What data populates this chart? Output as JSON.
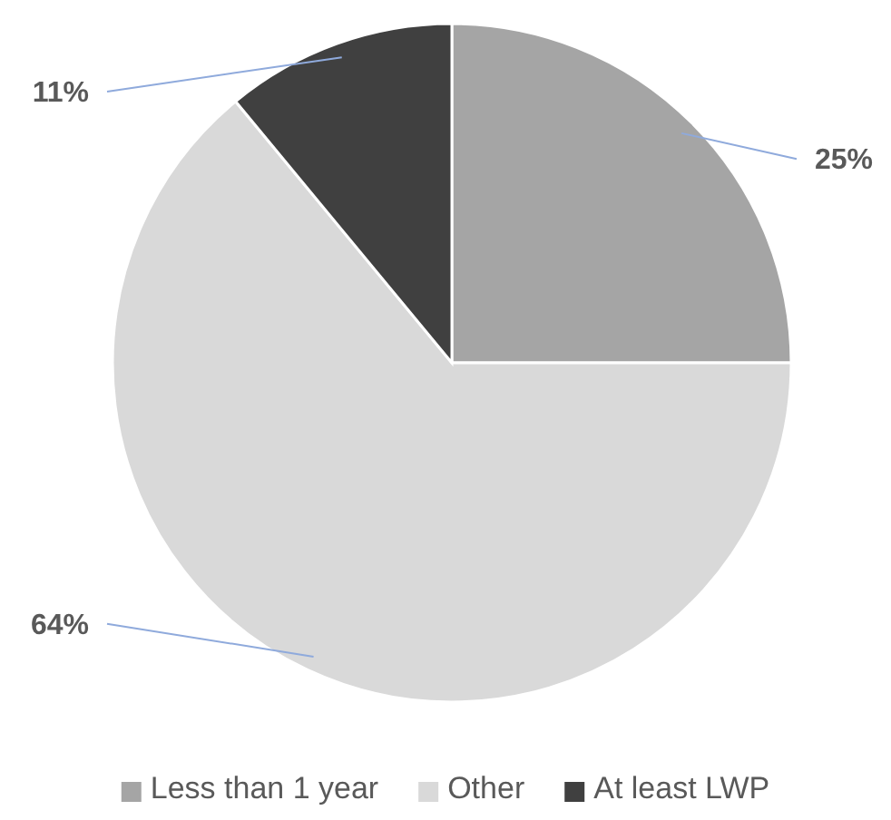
{
  "chart_data": {
    "type": "pie",
    "categories": [
      "Less than 1 year",
      "Other",
      "At least LWP"
    ],
    "values": [
      25,
      64,
      11
    ],
    "colors": [
      "#a5a5a5",
      "#d9d9d9",
      "#404040"
    ],
    "value_labels": [
      "25%",
      "64%",
      "11%"
    ],
    "legend": "bottom"
  }
}
